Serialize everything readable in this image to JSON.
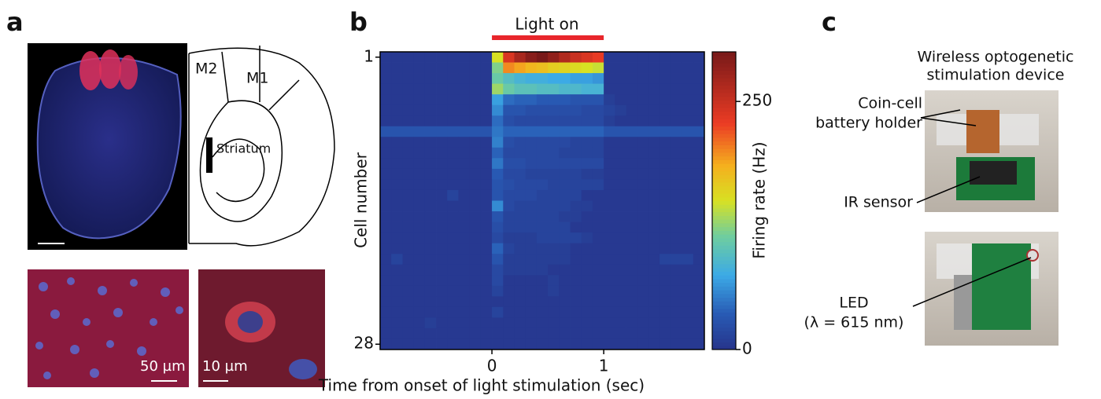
{
  "panel_labels": [
    "a",
    "b",
    "c"
  ],
  "panel_a": {
    "atlas_labels": [
      "M2",
      "M1",
      "Striatum"
    ],
    "scale_bars": [
      "50 µm",
      "10 µm"
    ]
  },
  "chart_data": {
    "type": "heatmap",
    "annotation": "Light on",
    "annotation_span": [
      0,
      1
    ],
    "annotation_color": "#e8262b",
    "xlabel": "Time from onset of light stimulation (sec)",
    "ylabel": "Cell number",
    "colorbar_label": "Firing rate (Hz)",
    "x": [
      -1,
      -0.9,
      -0.8,
      -0.7,
      -0.6,
      -0.5,
      -0.4,
      -0.3,
      -0.2,
      -0.1,
      0,
      0.1,
      0.2,
      0.3,
      0.4,
      0.5,
      0.6,
      0.7,
      0.8,
      0.9,
      1,
      1.1,
      1.2,
      1.3,
      1.4,
      1.5,
      1.6,
      1.7,
      1.8
    ],
    "xlim": [
      -1,
      1.9
    ],
    "xticks": [
      0,
      1
    ],
    "ylim": [
      28.5,
      0.5
    ],
    "yticks": [
      1,
      28
    ],
    "clim": [
      0,
      300
    ],
    "cticks": [
      0,
      250
    ],
    "values": [
      [
        5,
        5,
        5,
        5,
        5,
        5,
        5,
        5,
        5,
        5,
        150,
        240,
        270,
        290,
        300,
        285,
        265,
        250,
        240,
        230,
        5,
        5,
        5,
        5,
        5,
        5,
        5,
        5,
        5
      ],
      [
        5,
        5,
        5,
        5,
        5,
        5,
        5,
        5,
        5,
        5,
        120,
        200,
        190,
        180,
        175,
        165,
        160,
        155,
        150,
        145,
        5,
        5,
        5,
        5,
        5,
        5,
        5,
        5,
        5
      ],
      [
        5,
        5,
        5,
        5,
        5,
        5,
        5,
        5,
        5,
        5,
        110,
        95,
        85,
        80,
        80,
        75,
        75,
        70,
        70,
        65,
        5,
        5,
        5,
        5,
        5,
        5,
        5,
        5,
        5
      ],
      [
        5,
        5,
        5,
        5,
        5,
        5,
        5,
        5,
        5,
        5,
        130,
        110,
        100,
        100,
        95,
        95,
        90,
        90,
        85,
        85,
        5,
        5,
        5,
        5,
        5,
        5,
        5,
        5,
        5
      ],
      [
        5,
        5,
        5,
        5,
        5,
        5,
        5,
        5,
        5,
        5,
        70,
        45,
        40,
        40,
        35,
        35,
        35,
        30,
        30,
        30,
        10,
        5,
        5,
        5,
        5,
        5,
        5,
        5,
        5
      ],
      [
        5,
        5,
        5,
        5,
        5,
        5,
        5,
        5,
        5,
        5,
        60,
        30,
        30,
        25,
        25,
        25,
        25,
        25,
        20,
        20,
        15,
        10,
        5,
        5,
        5,
        5,
        5,
        5,
        5
      ],
      [
        5,
        5,
        5,
        5,
        5,
        5,
        5,
        5,
        5,
        5,
        45,
        25,
        20,
        20,
        20,
        20,
        20,
        20,
        20,
        20,
        10,
        5,
        5,
        5,
        5,
        5,
        5,
        5,
        5
      ],
      [
        30,
        30,
        30,
        30,
        30,
        30,
        30,
        30,
        30,
        30,
        50,
        40,
        40,
        40,
        40,
        40,
        40,
        40,
        40,
        40,
        30,
        30,
        30,
        30,
        30,
        30,
        30,
        30,
        30
      ],
      [
        5,
        5,
        5,
        5,
        5,
        5,
        5,
        5,
        5,
        5,
        55,
        25,
        20,
        20,
        20,
        20,
        20,
        15,
        15,
        15,
        5,
        5,
        5,
        5,
        5,
        5,
        5,
        5,
        5
      ],
      [
        5,
        5,
        5,
        5,
        5,
        5,
        5,
        5,
        5,
        5,
        40,
        20,
        20,
        20,
        20,
        20,
        15,
        15,
        15,
        15,
        5,
        5,
        5,
        5,
        5,
        5,
        5,
        5,
        5
      ],
      [
        5,
        5,
        5,
        5,
        5,
        5,
        5,
        5,
        5,
        5,
        50,
        25,
        25,
        20,
        20,
        20,
        20,
        20,
        20,
        20,
        5,
        5,
        5,
        5,
        5,
        5,
        5,
        5,
        5
      ],
      [
        5,
        5,
        5,
        5,
        5,
        5,
        5,
        5,
        5,
        5,
        35,
        20,
        20,
        15,
        15,
        15,
        15,
        15,
        10,
        10,
        5,
        5,
        5,
        5,
        5,
        5,
        5,
        5,
        5
      ],
      [
        5,
        5,
        5,
        5,
        5,
        5,
        5,
        5,
        5,
        5,
        30,
        25,
        20,
        20,
        20,
        15,
        15,
        15,
        15,
        15,
        5,
        5,
        5,
        5,
        5,
        5,
        5,
        5,
        5
      ],
      [
        5,
        5,
        5,
        5,
        5,
        5,
        15,
        5,
        5,
        5,
        30,
        20,
        20,
        20,
        15,
        15,
        15,
        15,
        5,
        5,
        5,
        5,
        5,
        5,
        5,
        5,
        5,
        5,
        5
      ],
      [
        5,
        5,
        5,
        5,
        5,
        5,
        5,
        5,
        5,
        5,
        60,
        20,
        15,
        15,
        15,
        15,
        15,
        10,
        10,
        5,
        5,
        5,
        5,
        5,
        5,
        5,
        5,
        5,
        5
      ],
      [
        5,
        5,
        5,
        5,
        5,
        5,
        5,
        5,
        5,
        5,
        30,
        15,
        15,
        15,
        15,
        15,
        10,
        10,
        5,
        5,
        5,
        5,
        5,
        5,
        5,
        5,
        5,
        5,
        5
      ],
      [
        5,
        5,
        5,
        5,
        5,
        5,
        5,
        5,
        5,
        5,
        25,
        15,
        15,
        15,
        15,
        15,
        15,
        5,
        5,
        5,
        5,
        5,
        5,
        5,
        5,
        5,
        5,
        5,
        5
      ],
      [
        5,
        5,
        5,
        5,
        5,
        5,
        5,
        5,
        5,
        5,
        20,
        10,
        10,
        10,
        15,
        15,
        15,
        15,
        10,
        5,
        5,
        5,
        5,
        5,
        5,
        5,
        5,
        5,
        5
      ],
      [
        5,
        5,
        5,
        5,
        5,
        5,
        5,
        5,
        5,
        5,
        40,
        15,
        10,
        10,
        10,
        10,
        10,
        5,
        5,
        5,
        5,
        5,
        5,
        5,
        5,
        5,
        5,
        5,
        5
      ],
      [
        5,
        15,
        5,
        5,
        5,
        5,
        5,
        5,
        5,
        5,
        30,
        10,
        10,
        10,
        10,
        10,
        10,
        5,
        5,
        5,
        5,
        5,
        5,
        5,
        5,
        15,
        15,
        15,
        5
      ],
      [
        5,
        5,
        5,
        5,
        5,
        5,
        5,
        5,
        5,
        5,
        20,
        10,
        10,
        10,
        10,
        5,
        5,
        5,
        5,
        5,
        5,
        5,
        5,
        5,
        5,
        5,
        5,
        5,
        5
      ],
      [
        5,
        5,
        5,
        5,
        5,
        5,
        5,
        5,
        5,
        5,
        20,
        5,
        5,
        5,
        5,
        10,
        5,
        5,
        5,
        5,
        5,
        5,
        5,
        5,
        5,
        5,
        5,
        5,
        5
      ],
      [
        5,
        5,
        5,
        5,
        5,
        5,
        5,
        5,
        5,
        5,
        15,
        5,
        5,
        5,
        5,
        10,
        5,
        5,
        5,
        5,
        5,
        5,
        5,
        5,
        5,
        5,
        5,
        5,
        5
      ],
      [
        5,
        5,
        5,
        5,
        5,
        5,
        5,
        5,
        5,
        5,
        5,
        5,
        5,
        5,
        5,
        5,
        5,
        5,
        5,
        5,
        5,
        5,
        5,
        5,
        5,
        5,
        5,
        5,
        5
      ],
      [
        5,
        5,
        5,
        5,
        5,
        5,
        5,
        5,
        5,
        5,
        15,
        5,
        5,
        5,
        5,
        5,
        5,
        5,
        5,
        5,
        5,
        5,
        5,
        5,
        5,
        5,
        5,
        5,
        5
      ],
      [
        5,
        5,
        5,
        5,
        10,
        5,
        5,
        5,
        5,
        5,
        5,
        5,
        5,
        5,
        5,
        5,
        5,
        5,
        5,
        5,
        5,
        5,
        5,
        5,
        5,
        5,
        5,
        5,
        5
      ],
      [
        5,
        5,
        5,
        5,
        5,
        5,
        5,
        5,
        5,
        5,
        5,
        5,
        5,
        5,
        5,
        5,
        5,
        5,
        5,
        5,
        5,
        5,
        5,
        5,
        5,
        5,
        5,
        5,
        5
      ],
      [
        5,
        5,
        5,
        5,
        5,
        5,
        5,
        5,
        5,
        5,
        5,
        5,
        5,
        5,
        5,
        5,
        5,
        5,
        5,
        5,
        5,
        5,
        5,
        5,
        5,
        5,
        5,
        5,
        5
      ]
    ]
  },
  "panel_c": {
    "title": [
      "Wireless optogenetic",
      "stimulation device"
    ],
    "labels": {
      "battery": [
        "Coin-cell",
        "battery holder"
      ],
      "sensor": [
        "IR sensor"
      ],
      "led": [
        "LED",
        "(λ = 615 nm)"
      ]
    }
  }
}
